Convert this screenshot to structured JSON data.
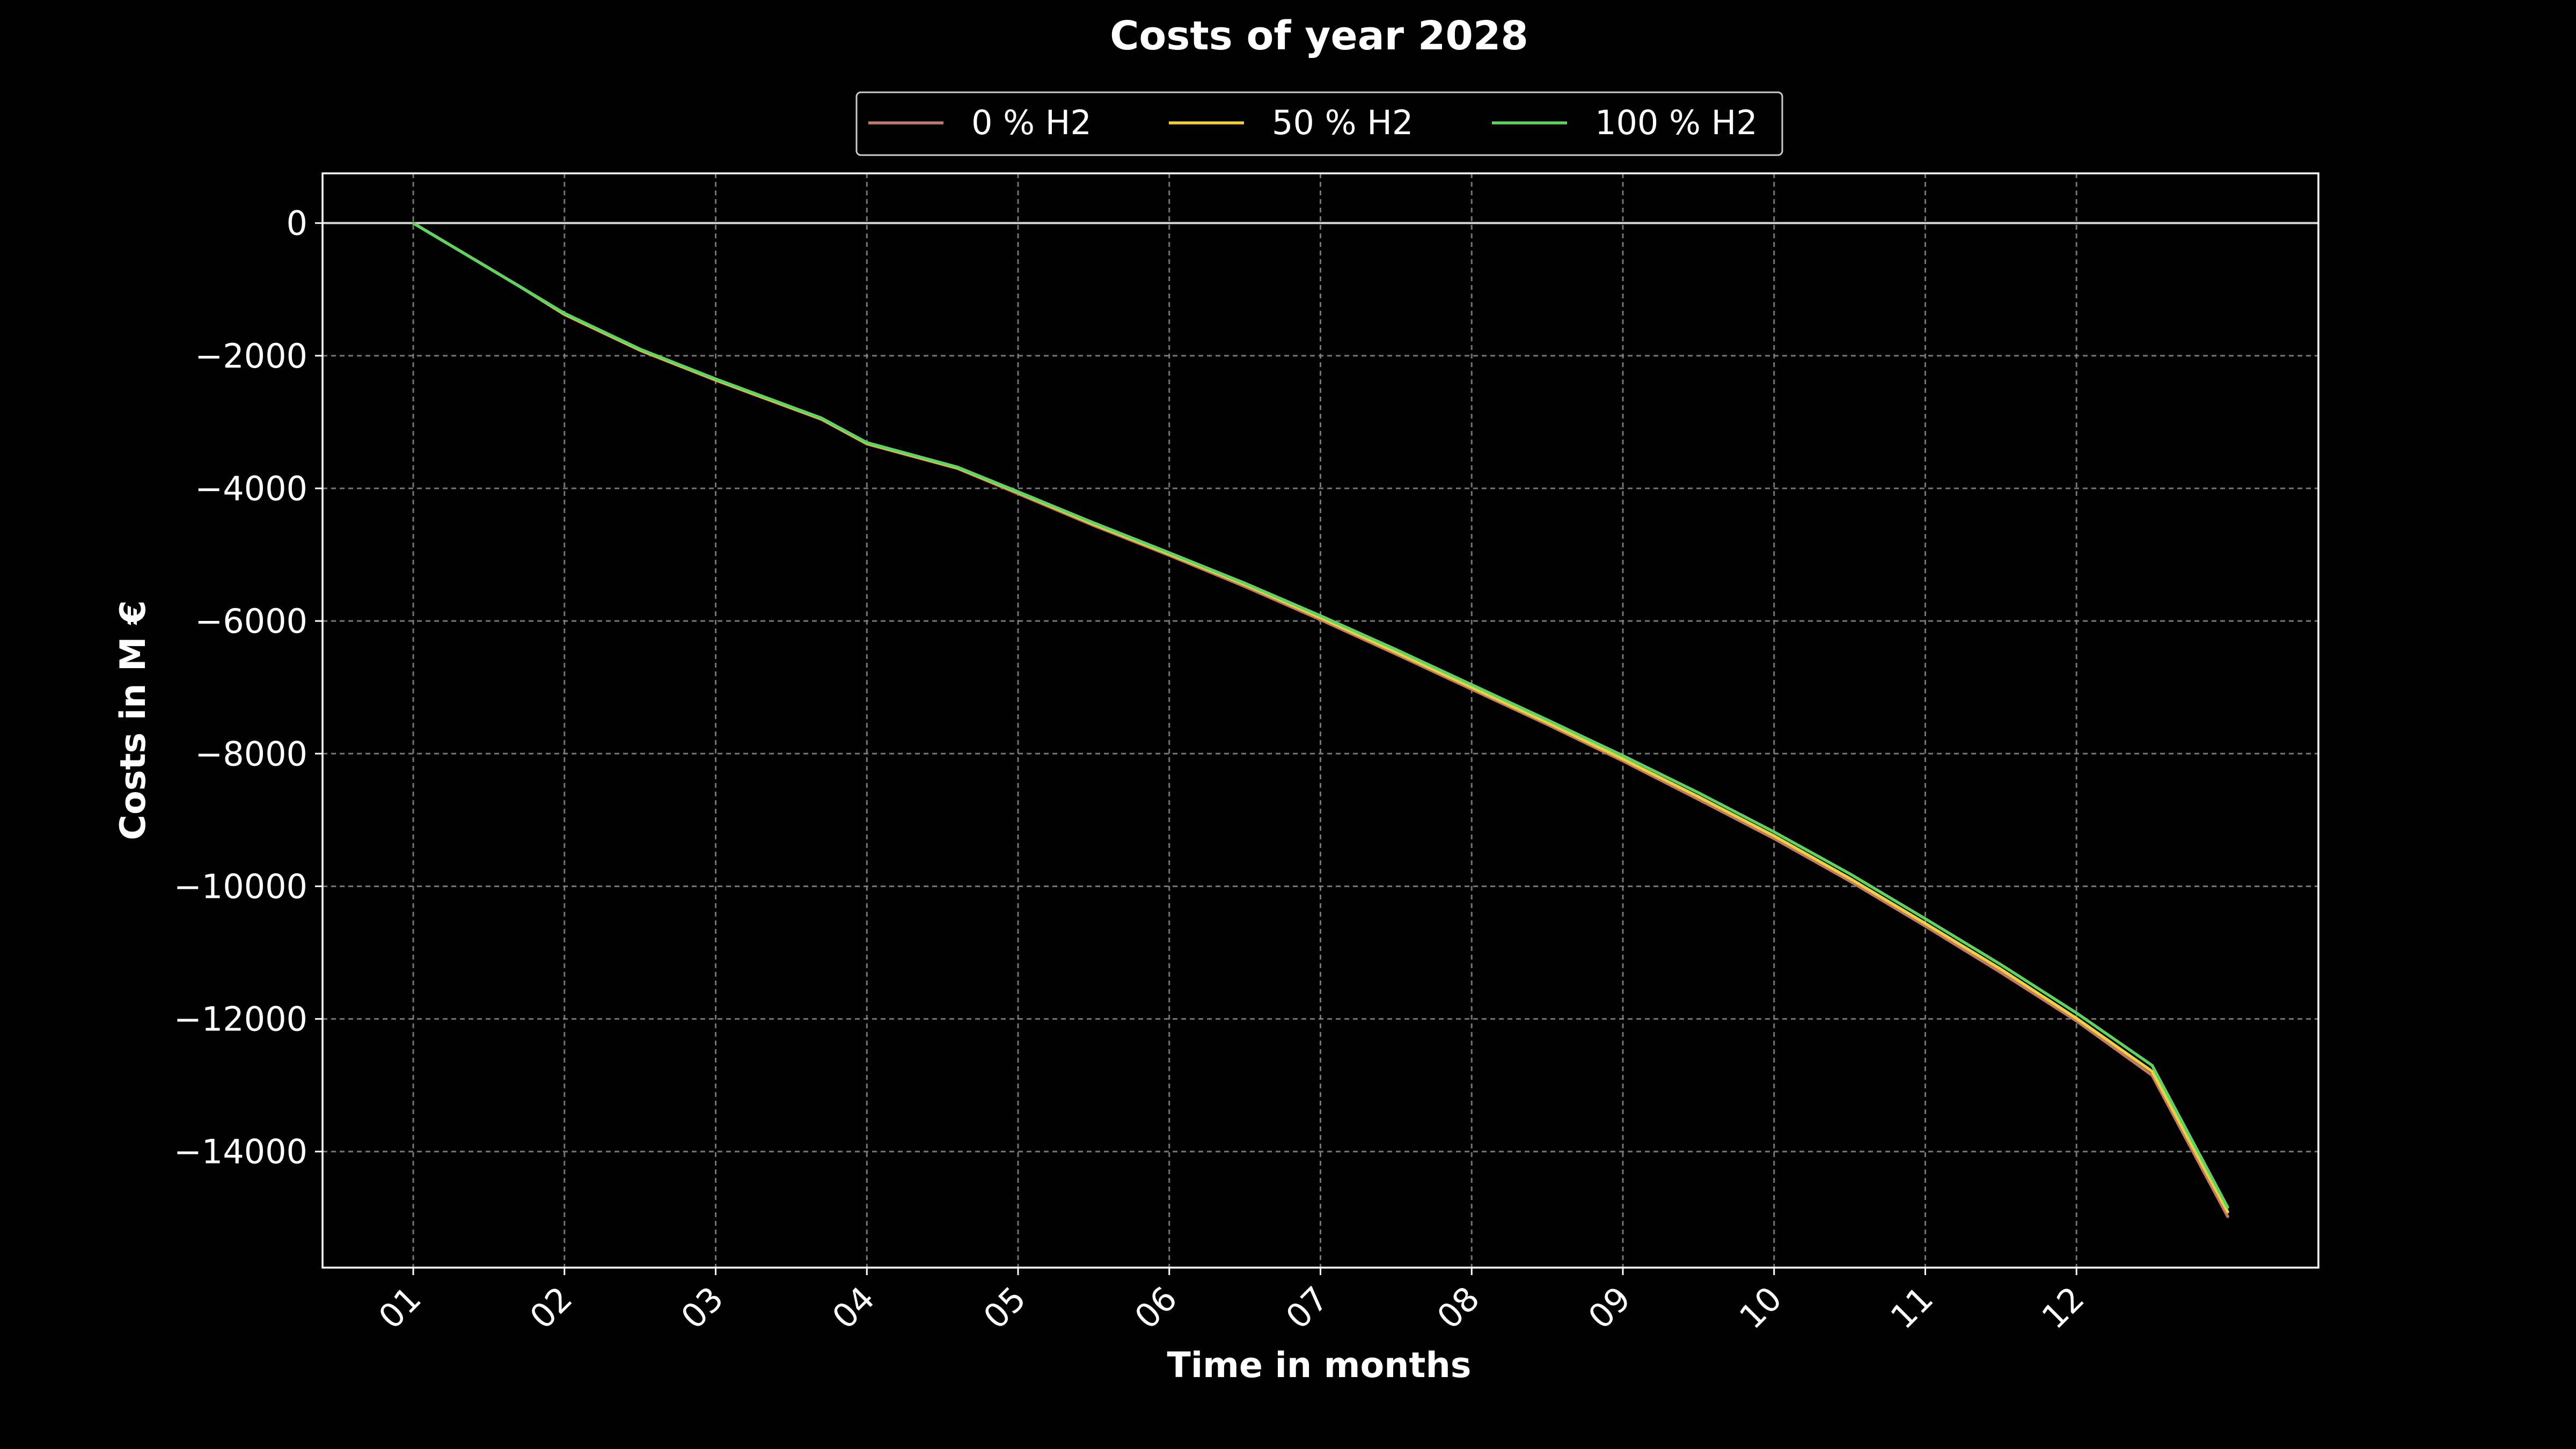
{
  "chart_data": {
    "type": "line",
    "title": "Costs of year 2028",
    "xlabel": "Time in months",
    "ylabel": "Costs in M €",
    "categories": [
      "01",
      "02",
      "03",
      "04",
      "05",
      "06",
      "07",
      "08",
      "09",
      "10",
      "11",
      "12"
    ],
    "x": [
      0,
      0.7,
      1.0,
      1.5,
      2.0,
      2.7,
      3.0,
      3.6,
      4.0,
      4.5,
      5.0,
      5.5,
      6.0,
      6.5,
      7.0,
      7.5,
      8.0,
      8.5,
      9.0,
      9.5,
      10.0,
      10.5,
      11.0,
      11.5,
      12.0
    ],
    "series": [
      {
        "name": "0 % H2",
        "color": "#c07a6a",
        "values": [
          0,
          -950,
          -1380,
          -1920,
          -2370,
          -2960,
          -3330,
          -3700,
          -4080,
          -4560,
          -5010,
          -5480,
          -5980,
          -6500,
          -7030,
          -7560,
          -8110,
          -8690,
          -9280,
          -9920,
          -10600,
          -11300,
          -12030,
          -12850,
          -14980
        ]
      },
      {
        "name": "50 % H2",
        "color": "#f0d040",
        "values": [
          0,
          -950,
          -1370,
          -1910,
          -2360,
          -2950,
          -3320,
          -3690,
          -4060,
          -4540,
          -4990,
          -5450,
          -5950,
          -6470,
          -7000,
          -7530,
          -8080,
          -8650,
          -9240,
          -9880,
          -10560,
          -11250,
          -11990,
          -12790,
          -14910
        ]
      },
      {
        "name": "100 % H2",
        "color": "#5fd35f",
        "values": [
          0,
          -950,
          -1360,
          -1900,
          -2350,
          -2940,
          -3310,
          -3680,
          -4050,
          -4520,
          -4970,
          -5430,
          -5920,
          -6430,
          -6960,
          -7490,
          -8030,
          -8590,
          -9180,
          -9810,
          -10490,
          -11180,
          -11910,
          -12700,
          -14840
        ]
      }
    ],
    "xlim": [
      -0.6,
      12.6
    ],
    "ylim": [
      -15750,
      750
    ],
    "yticks": [
      0,
      -2000,
      -4000,
      -6000,
      -8000,
      -10000,
      -12000,
      -14000
    ],
    "ytick_labels": [
      "0",
      "−2000",
      "−4000",
      "−6000",
      "−8000",
      "−10000",
      "−12000",
      "−14000"
    ],
    "grid": true,
    "legend_position": "top-center"
  }
}
